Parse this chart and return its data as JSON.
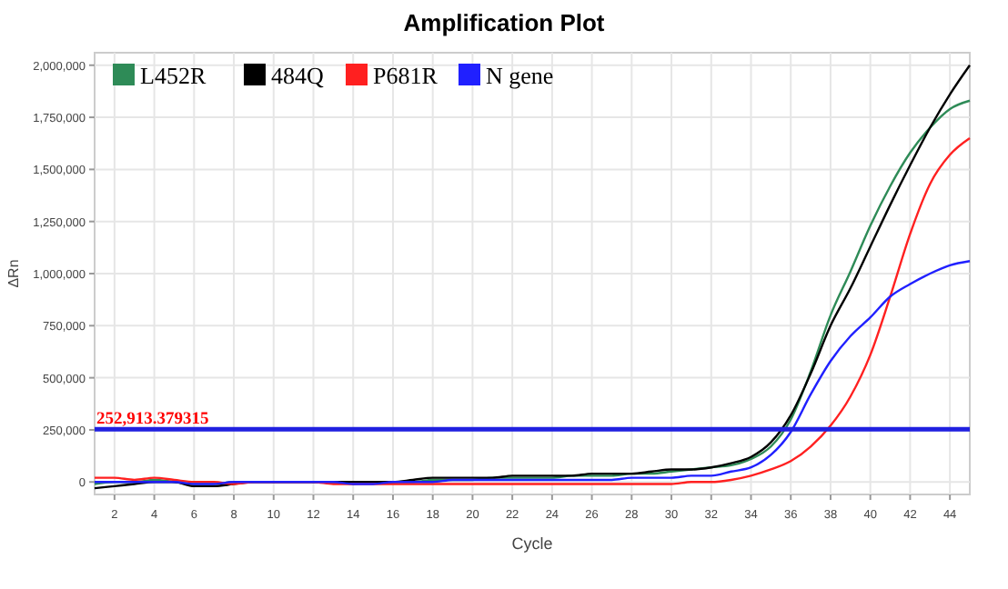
{
  "chart_data": {
    "type": "line",
    "title": "Amplification Plot",
    "xlabel": "Cycle",
    "ylabel": "ΔRn",
    "x": [
      1,
      2,
      3,
      4,
      5,
      6,
      7,
      8,
      9,
      10,
      11,
      12,
      13,
      14,
      15,
      16,
      17,
      18,
      19,
      20,
      21,
      22,
      23,
      24,
      25,
      26,
      27,
      28,
      29,
      30,
      31,
      32,
      33,
      34,
      35,
      36,
      37,
      38,
      39,
      40,
      41,
      42,
      43,
      44,
      45
    ],
    "xlim": [
      1,
      45
    ],
    "xticks": [
      2,
      4,
      6,
      8,
      10,
      12,
      14,
      16,
      18,
      20,
      22,
      24,
      26,
      28,
      30,
      32,
      34,
      36,
      38,
      40,
      42,
      44
    ],
    "ylim": [
      -60000,
      2060000
    ],
    "yticks": [
      {
        "value": 0,
        "label": "0"
      },
      {
        "value": 250000,
        "label": "250,000"
      },
      {
        "value": 500000,
        "label": "500,000"
      },
      {
        "value": 750000,
        "label": "750,000"
      },
      {
        "value": 1000000,
        "label": "1,000,000"
      },
      {
        "value": 1250000,
        "label": "1,250,000"
      },
      {
        "value": 1500000,
        "label": "1,500,000"
      },
      {
        "value": 1750000,
        "label": "1,750,000"
      },
      {
        "value": 2000000,
        "label": "2,000,000"
      }
    ],
    "grid": true,
    "legend": "top left",
    "line_style": "solid",
    "marker": "none",
    "series": [
      {
        "name": "L452R",
        "color": "#2e8b57",
        "values": [
          -10000,
          0,
          0,
          10000,
          0,
          -10000,
          -10000,
          0,
          0,
          0,
          0,
          0,
          0,
          -10000,
          0,
          0,
          0,
          10000,
          10000,
          10000,
          20000,
          20000,
          20000,
          20000,
          30000,
          30000,
          30000,
          40000,
          40000,
          50000,
          60000,
          70000,
          80000,
          110000,
          170000,
          300000,
          530000,
          800000,
          1010000,
          1230000,
          1420000,
          1580000,
          1700000,
          1790000,
          1830000
        ]
      },
      {
        "name": "484Q",
        "color": "#000000",
        "values": [
          -30000,
          -20000,
          -10000,
          0,
          0,
          -20000,
          -20000,
          -10000,
          0,
          0,
          0,
          0,
          0,
          0,
          0,
          0,
          10000,
          20000,
          20000,
          20000,
          20000,
          30000,
          30000,
          30000,
          30000,
          40000,
          40000,
          40000,
          50000,
          60000,
          60000,
          70000,
          90000,
          120000,
          190000,
          320000,
          520000,
          750000,
          930000,
          1130000,
          1330000,
          1520000,
          1700000,
          1860000,
          2000000
        ]
      },
      {
        "name": "P681R",
        "color": "#ff2020",
        "values": [
          20000,
          20000,
          10000,
          20000,
          10000,
          0,
          0,
          -10000,
          0,
          0,
          0,
          0,
          -10000,
          -10000,
          -10000,
          -10000,
          -10000,
          -10000,
          -10000,
          -10000,
          -10000,
          -10000,
          -10000,
          -10000,
          -10000,
          -10000,
          -10000,
          -10000,
          -10000,
          -10000,
          0,
          0,
          10000,
          30000,
          60000,
          100000,
          170000,
          270000,
          410000,
          610000,
          890000,
          1190000,
          1430000,
          1570000,
          1650000
        ]
      },
      {
        "name": "N gene",
        "color": "#2020ff",
        "values": [
          0,
          0,
          0,
          0,
          0,
          -10000,
          -10000,
          0,
          0,
          0,
          0,
          0,
          0,
          -10000,
          -10000,
          0,
          0,
          0,
          10000,
          10000,
          10000,
          10000,
          10000,
          10000,
          10000,
          10000,
          10000,
          20000,
          20000,
          20000,
          30000,
          30000,
          50000,
          70000,
          130000,
          240000,
          420000,
          580000,
          700000,
          790000,
          890000,
          950000,
          1000000,
          1040000,
          1060000
        ]
      }
    ],
    "ref_lines": [
      {
        "axis": "y",
        "value": 252913.379315,
        "label": "252,913.379315",
        "color": "#2020e0"
      }
    ]
  }
}
